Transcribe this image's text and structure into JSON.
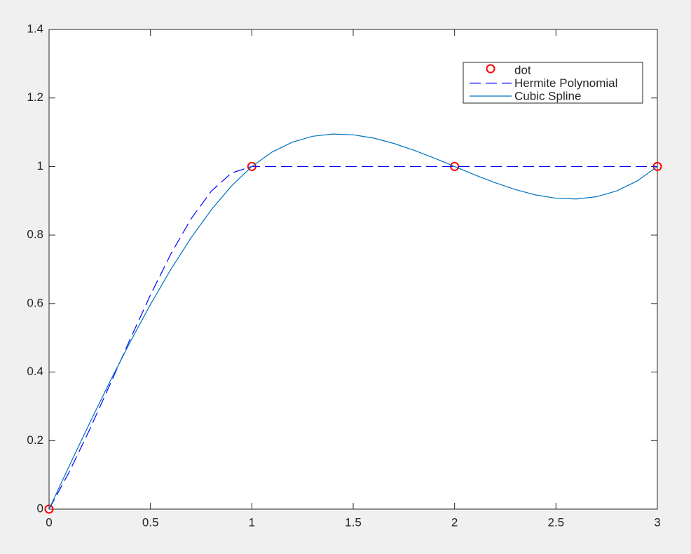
{
  "chart_data": {
    "type": "line",
    "x": [
      0,
      0.1,
      0.2,
      0.3,
      0.4,
      0.5,
      0.6,
      0.7,
      0.8,
      0.9,
      1,
      1.1,
      1.2,
      1.3,
      1.4,
      1.5,
      1.6,
      1.7,
      1.8,
      1.9,
      2,
      2.1,
      2.2,
      2.3,
      2.4,
      2.5,
      2.6,
      2.7,
      2.8,
      2.9,
      3
    ],
    "series": [
      {
        "name": "dot",
        "color": "#ff0000",
        "marker": "o",
        "line_style": "none",
        "values": [
          0,
          null,
          null,
          null,
          null,
          null,
          null,
          null,
          null,
          null,
          1,
          null,
          null,
          null,
          null,
          null,
          null,
          null,
          null,
          null,
          1,
          null,
          null,
          null,
          null,
          null,
          null,
          null,
          null,
          null,
          1
        ]
      },
      {
        "name": "Hermite Polynomial",
        "color": "#0000ff",
        "marker": "none",
        "line_style": "--",
        "values": [
          0,
          0.109,
          0.232,
          0.363,
          0.496,
          0.625,
          0.744,
          0.847,
          0.928,
          0.981,
          1,
          1,
          1,
          1,
          1,
          1,
          1,
          1,
          1,
          1,
          1,
          1,
          1,
          1,
          1,
          1,
          1,
          1,
          1,
          1,
          1
        ]
      },
      {
        "name": "Cubic Spline",
        "color": "#0072bd",
        "marker": "none",
        "line_style": "-",
        "values": [
          0,
          0.1266,
          0.251,
          0.3719,
          0.4877,
          0.5973,
          0.699,
          0.7915,
          0.8735,
          0.9434,
          1,
          1.0422,
          1.0711,
          1.0882,
          1.0948,
          1.0926,
          1.083,
          1.0674,
          1.0474,
          1.0245,
          1,
          0.9755,
          0.9526,
          0.9326,
          0.917,
          0.9074,
          0.9052,
          0.9118,
          0.9289,
          0.9578,
          1
        ]
      }
    ],
    "xlim": [
      0,
      3
    ],
    "xticks": [
      0,
      0.5,
      1,
      1.5,
      2,
      2.5,
      3
    ],
    "ylim": [
      0,
      1.4
    ],
    "yticks": [
      0,
      0.2,
      0.4,
      0.6,
      0.8,
      1,
      1.2,
      1.4
    ],
    "legend": "northeast"
  }
}
